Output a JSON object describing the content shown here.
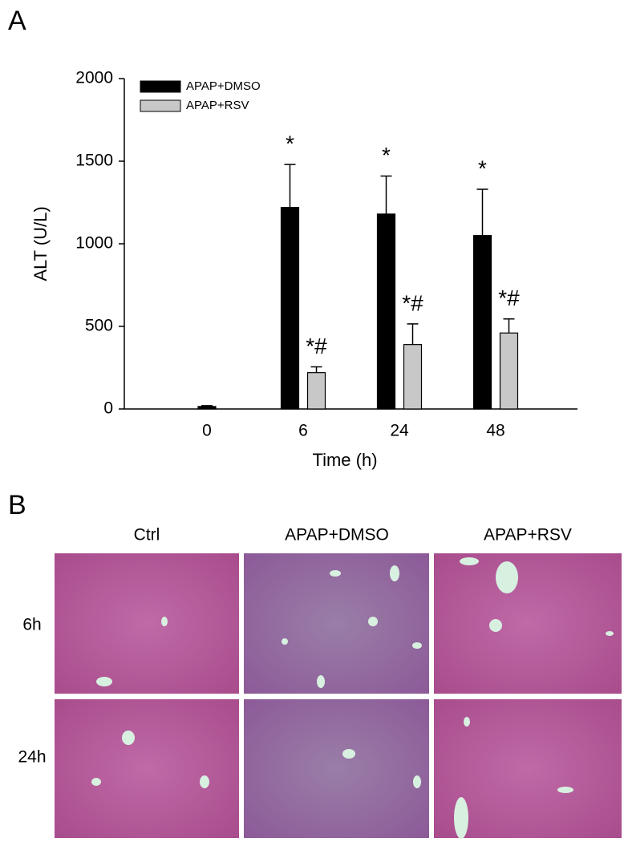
{
  "panel_labels": [
    "A",
    "B"
  ],
  "chart_data": {
    "type": "bar",
    "xlabel": "Time (h)",
    "ylabel": "ALT (U/L)",
    "categories": [
      "0",
      "6",
      "24",
      "48"
    ],
    "series": [
      {
        "name": "APAP+DMSO",
        "color": "#000000",
        "values": [
          15,
          1220,
          1180,
          1050
        ],
        "errors": [
          5,
          260,
          230,
          280
        ],
        "annotations": [
          null,
          "*",
          "*",
          "*"
        ]
      },
      {
        "name": "APAP+RSV",
        "color": "#c8c8c8",
        "values": [
          null,
          220,
          390,
          460
        ],
        "errors": [
          null,
          35,
          125,
          85
        ],
        "annotations": [
          null,
          "*#",
          "*#",
          "*#"
        ]
      }
    ],
    "ylim": [
      0,
      2000
    ],
    "yticks": [
      0,
      500,
      1000,
      1500,
      2000
    ],
    "grid": false,
    "legend": "upper left"
  },
  "histology": {
    "columns": [
      "Ctrl",
      "APAP+DMSO",
      "APAP+RSV"
    ],
    "rows": [
      "6h",
      "24h"
    ]
  }
}
